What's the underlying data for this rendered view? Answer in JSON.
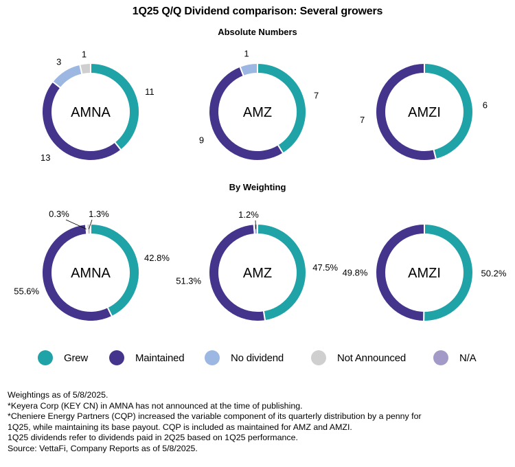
{
  "title": "1Q25 Q/Q Dividend comparison: Several growers",
  "colors": {
    "Grew": "#1fa3a7",
    "Maintained": "#44348c",
    "No dividend": "#9cb8e2",
    "Not Announced": "#cfcfcf",
    "N/A": "#a49ac8"
  },
  "legend": [
    {
      "label": "Grew",
      "color": "#1fa3a7"
    },
    {
      "label": "Maintained",
      "color": "#44348c"
    },
    {
      "label": "No dividend",
      "color": "#9cb8e2"
    },
    {
      "label": "Not Announced",
      "color": "#cfcfcf"
    },
    {
      "label": "N/A",
      "color": "#a49ac8"
    }
  ],
  "sections": {
    "absolute": "Absolute Numbers",
    "weighting": "By Weighting"
  },
  "chart_data": [
    {
      "type": "pie",
      "variant": "donut",
      "section": "Absolute Numbers",
      "center_label": "AMNA",
      "slices": [
        {
          "category": "Grew",
          "value": 11,
          "label": "11"
        },
        {
          "category": "Maintained",
          "value": 13,
          "label": "13"
        },
        {
          "category": "No dividend",
          "value": 3,
          "label": "3"
        },
        {
          "category": "Not Announced",
          "value": 1,
          "label": "1"
        }
      ]
    },
    {
      "type": "pie",
      "variant": "donut",
      "section": "Absolute Numbers",
      "center_label": "AMZ",
      "slices": [
        {
          "category": "Grew",
          "value": 7,
          "label": "7"
        },
        {
          "category": "Maintained",
          "value": 9,
          "label": "9"
        },
        {
          "category": "No dividend",
          "value": 1,
          "label": "1"
        }
      ]
    },
    {
      "type": "pie",
      "variant": "donut",
      "section": "Absolute Numbers",
      "center_label": "AMZI",
      "slices": [
        {
          "category": "Grew",
          "value": 6,
          "label": "6"
        },
        {
          "category": "Maintained",
          "value": 7,
          "label": "7"
        }
      ]
    },
    {
      "type": "pie",
      "variant": "donut",
      "section": "By Weighting",
      "center_label": "AMNA",
      "slices": [
        {
          "category": "Grew",
          "value": 42.8,
          "label": "42.8%"
        },
        {
          "category": "Maintained",
          "value": 55.6,
          "label": "55.6%"
        },
        {
          "category": "No dividend",
          "value": 0.3,
          "label": "0.3%"
        },
        {
          "category": "Not Announced",
          "value": 1.3,
          "label": "1.3%"
        }
      ]
    },
    {
      "type": "pie",
      "variant": "donut",
      "section": "By Weighting",
      "center_label": "AMZ",
      "slices": [
        {
          "category": "Grew",
          "value": 47.5,
          "label": "47.5%"
        },
        {
          "category": "Maintained",
          "value": 51.3,
          "label": "51.3%"
        },
        {
          "category": "No dividend",
          "value": 1.2,
          "label": "1.2%"
        }
      ]
    },
    {
      "type": "pie",
      "variant": "donut",
      "section": "By Weighting",
      "center_label": "AMZI",
      "slices": [
        {
          "category": "Grew",
          "value": 50.2,
          "label": "50.2%"
        },
        {
          "category": "Maintained",
          "value": 49.8,
          "label": "49.8%"
        }
      ]
    }
  ],
  "notes": [
    "Weightings as of 5/8/2025.",
    "*Keyera Corp (KEY CN) in AMNA has not announced at the time of publishing.",
    "*Cheniere Energy Partners (CQP) increased the variable component of its quarterly distribution by a penny for",
    "1Q25, while maintaining its base payout. CQP is included as maintained for AMZ and AMZI.",
    "1Q25 dividends refer to dividends paid in 2Q25 based on 1Q25 performance.",
    "Source: VettaFi, Company Reports as of 5/8/2025."
  ]
}
